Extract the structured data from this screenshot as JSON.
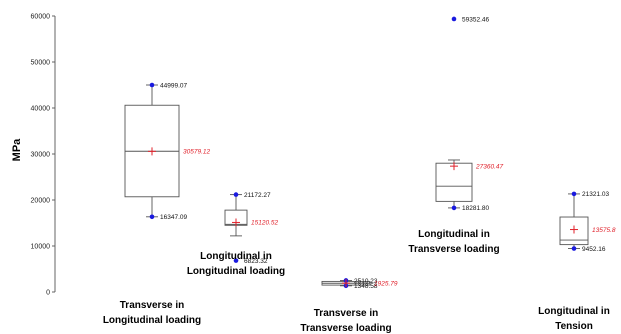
{
  "chart_data": {
    "type": "box",
    "title": "",
    "xlabel": "",
    "ylabel": "MPa",
    "ylim": [
      0,
      60000
    ],
    "yticks": [
      0,
      10000,
      20000,
      30000,
      40000,
      50000,
      60000
    ],
    "grid": false,
    "colors": {
      "box_stroke": "#555555",
      "point": "#1a1adf",
      "mean": "#e0202a",
      "text": "#111111"
    },
    "series": [
      {
        "label_lines": [
          "Transverse in",
          "Longitudinal loading"
        ],
        "whisker_low": 16347.09,
        "q1": 20700,
        "median": 30600,
        "q3": 40600,
        "whisker_high": 44999.07,
        "mean": 30579.12,
        "point_labels": [
          {
            "text": "44999.07",
            "value": 44999.07
          },
          {
            "text": "16347.09",
            "value": 16347.09
          }
        ],
        "mean_label": "30579.12",
        "outliers": []
      },
      {
        "label_lines": [
          "Longitudinal in",
          "Longitudinal loading"
        ],
        "whisker_low": 12200,
        "q1": 14500,
        "median": 14700,
        "q3": 17800,
        "whisker_high": 21172.27,
        "mean": 15120.52,
        "point_labels": [
          {
            "text": "21172.27",
            "value": 21172.27
          },
          {
            "text": "6823.32",
            "value": 6823.32
          }
        ],
        "mean_label": "15120.52",
        "outliers": [
          6823.32
        ]
      },
      {
        "label_lines": [
          "Transverse in",
          "Transverse loading"
        ],
        "whisker_low": 1348.58,
        "q1": 1500,
        "median": 1900,
        "q3": 2300,
        "whisker_high": 2510.23,
        "mean": 1925.79,
        "point_labels": [
          {
            "text": "2510.23",
            "value": 2510.23
          },
          {
            "text": "1348.58",
            "value": 1348.58
          }
        ],
        "mean_label": "1925.79",
        "outliers": []
      },
      {
        "label_lines": [
          "Longitudinal in",
          "Transverse loading"
        ],
        "whisker_low": 18281.8,
        "q1": 19700,
        "median": 23000,
        "q3": 28000,
        "whisker_high": 28700,
        "mean": 27360.47,
        "point_labels": [
          {
            "text": "59352.46",
            "value": 59352.46
          },
          {
            "text": "18281.80",
            "value": 18281.8
          }
        ],
        "mean_label": "27360.47",
        "outliers": [
          59352.46
        ]
      },
      {
        "label_lines": [
          "Longitudinal in",
          "Tension"
        ],
        "whisker_low": 9452.16,
        "q1": 10300,
        "median": 11300,
        "q3": 16300,
        "whisker_high": 21321.03,
        "mean": 13575.8,
        "point_labels": [
          {
            "text": "21321.03",
            "value": 21321.03
          },
          {
            "text": "9452.16",
            "value": 9452.16
          }
        ],
        "mean_label": "13575.8",
        "outliers": []
      }
    ]
  }
}
